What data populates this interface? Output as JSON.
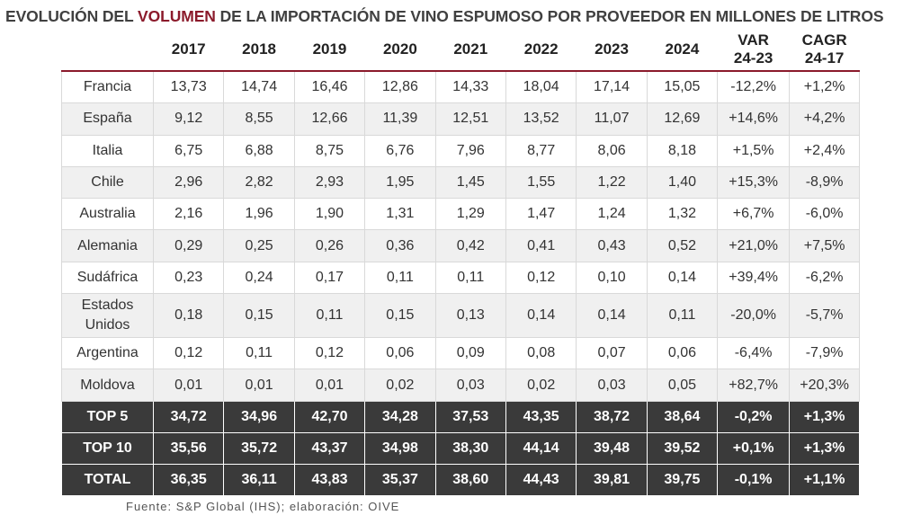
{
  "title": {
    "pre": "EVOLUCIÓN DEL ",
    "highlight": "VOLUMEN",
    "post": " DE LA IMPORTACIÓN DE VINO ESPUMOSO POR PROVEEDOR EN MILLONES DE LITROS"
  },
  "headers": {
    "years": [
      "2017",
      "2018",
      "2019",
      "2020",
      "2021",
      "2022",
      "2023",
      "2024"
    ],
    "var": "VAR\n24-23",
    "cagr": "CAGR\n24-17"
  },
  "rows": [
    {
      "country": "Francia",
      "values": [
        "13,73",
        "14,74",
        "16,46",
        "12,86",
        "14,33",
        "18,04",
        "17,14",
        "15,05"
      ],
      "var": "-12,2%",
      "cagr": "+1,2%"
    },
    {
      "country": "España",
      "values": [
        "9,12",
        "8,55",
        "12,66",
        "11,39",
        "12,51",
        "13,52",
        "11,07",
        "12,69"
      ],
      "var": "+14,6%",
      "cagr": "+4,2%"
    },
    {
      "country": "Italia",
      "values": [
        "6,75",
        "6,88",
        "8,75",
        "6,76",
        "7,96",
        "8,77",
        "8,06",
        "8,18"
      ],
      "var": "+1,5%",
      "cagr": "+2,4%"
    },
    {
      "country": "Chile",
      "values": [
        "2,96",
        "2,82",
        "2,93",
        "1,95",
        "1,45",
        "1,55",
        "1,22",
        "1,40"
      ],
      "var": "+15,3%",
      "cagr": "-8,9%"
    },
    {
      "country": "Australia",
      "values": [
        "2,16",
        "1,96",
        "1,90",
        "1,31",
        "1,29",
        "1,47",
        "1,24",
        "1,32"
      ],
      "var": "+6,7%",
      "cagr": "-6,0%"
    },
    {
      "country": "Alemania",
      "values": [
        "0,29",
        "0,25",
        "0,26",
        "0,36",
        "0,42",
        "0,41",
        "0,43",
        "0,52"
      ],
      "var": "+21,0%",
      "cagr": "+7,5%"
    },
    {
      "country": "Sudáfrica",
      "values": [
        "0,23",
        "0,24",
        "0,17",
        "0,11",
        "0,11",
        "0,12",
        "0,10",
        "0,14"
      ],
      "var": "+39,4%",
      "cagr": "-6,2%"
    },
    {
      "country": "Estados\nUnidos",
      "values": [
        "0,18",
        "0,15",
        "0,11",
        "0,15",
        "0,13",
        "0,14",
        "0,14",
        "0,11"
      ],
      "var": "-20,0%",
      "cagr": "-5,7%"
    },
    {
      "country": "Argentina",
      "values": [
        "0,12",
        "0,11",
        "0,12",
        "0,06",
        "0,09",
        "0,08",
        "0,07",
        "0,06"
      ],
      "var": "-6,4%",
      "cagr": "-7,9%"
    },
    {
      "country": "Moldova",
      "values": [
        "0,01",
        "0,01",
        "0,01",
        "0,02",
        "0,03",
        "0,02",
        "0,03",
        "0,05"
      ],
      "var": "+82,7%",
      "cagr": "+20,3%"
    }
  ],
  "totals": [
    {
      "label": "TOP 5",
      "values": [
        "34,72",
        "34,96",
        "42,70",
        "34,28",
        "37,53",
        "43,35",
        "38,72",
        "38,64"
      ],
      "var": "-0,2%",
      "cagr": "+1,3%"
    },
    {
      "label": "TOP 10",
      "values": [
        "35,56",
        "35,72",
        "43,37",
        "34,98",
        "38,30",
        "44,14",
        "39,48",
        "39,52"
      ],
      "var": "+0,1%",
      "cagr": "+1,3%"
    },
    {
      "label": "TOTAL",
      "values": [
        "36,35",
        "36,11",
        "43,83",
        "35,37",
        "38,60",
        "44,43",
        "39,81",
        "39,75"
      ],
      "var": "-0,1%",
      "cagr": "+1,1%"
    }
  ],
  "source": "Fuente: S&P Global (IHS); elaboración: OIVE"
}
